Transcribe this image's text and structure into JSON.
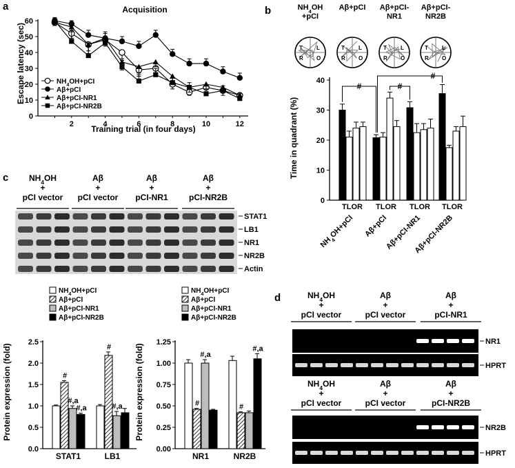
{
  "figure": {
    "panel_labels": {
      "a": "a",
      "b": "b",
      "c": "c",
      "d": "d"
    }
  },
  "chart_data": [
    {
      "panel": "a",
      "type": "line",
      "title": "Acquisition",
      "xlabel": "Training trial (in four days)",
      "ylabel": "Escape latency (sec)",
      "xlim": [
        0,
        12.5
      ],
      "ylim": [
        0,
        60
      ],
      "xticks": [
        2,
        4,
        6,
        8,
        10,
        12
      ],
      "yticks": [
        0,
        10,
        20,
        30,
        40,
        50,
        60
      ],
      "legend_position": "bottom-left",
      "series": [
        {
          "name": "NH4OH+pCI",
          "marker": "circle-open",
          "x": [
            1,
            2,
            3,
            4,
            5,
            6,
            7,
            8,
            9,
            10,
            11,
            12
          ],
          "y": [
            59,
            52,
            45,
            48,
            40,
            29,
            30,
            20,
            15,
            18,
            16,
            13
          ],
          "err": [
            2,
            3,
            4,
            4,
            5,
            4,
            3,
            3,
            2,
            3,
            3,
            3
          ]
        },
        {
          "name": "Aβ+pCI",
          "marker": "circle-filled",
          "x": [
            1,
            2,
            3,
            4,
            5,
            6,
            7,
            8,
            9,
            10,
            11,
            12
          ],
          "y": [
            60,
            58,
            51,
            49,
            47,
            44,
            51,
            39,
            33,
            33,
            28,
            24
          ],
          "err": [
            1,
            2,
            3,
            4,
            3,
            3,
            3,
            3,
            3,
            3,
            3,
            3
          ]
        },
        {
          "name": "Aβ+pCI-NR1",
          "marker": "triangle-filled",
          "x": [
            1,
            2,
            3,
            4,
            5,
            6,
            7,
            8,
            9,
            10,
            11,
            12
          ],
          "y": [
            59,
            56,
            45,
            49,
            34,
            31,
            34,
            25,
            18,
            20,
            18,
            13
          ],
          "err": [
            2,
            3,
            6,
            4,
            5,
            4,
            3,
            3,
            3,
            3,
            3,
            3
          ]
        },
        {
          "name": "Aβ+pCI-NR2B",
          "marker": "square-filled",
          "x": [
            1,
            2,
            3,
            4,
            5,
            6,
            7,
            8,
            9,
            10,
            11,
            12
          ],
          "y": [
            60,
            47,
            38,
            46,
            31,
            22,
            26,
            21,
            18,
            14,
            16,
            11
          ],
          "err": [
            2,
            7,
            8,
            6,
            5,
            4,
            4,
            3,
            3,
            3,
            3,
            3
          ]
        }
      ]
    },
    {
      "panel": "b",
      "type": "bar",
      "ylabel": "Time in quadrant (%)",
      "ylim": [
        0,
        40
      ],
      "yticks": [
        0,
        10,
        20,
        30,
        40
      ],
      "quadrant_labels": [
        "T",
        "L",
        "O",
        "R"
      ],
      "group_tick_text": [
        "TLOR",
        "TLOR",
        "TLOR",
        "TLOR"
      ],
      "significance_mark": "#",
      "track_labels": [
        [
          "NH4OH",
          "+pCI"
        ],
        [
          "Aβ+pCI"
        ],
        [
          "Aβ+pCI-",
          "NR1"
        ],
        [
          "Aβ+pCI-",
          "NR2B"
        ]
      ],
      "track_quadrant_letters": [
        "T",
        "L",
        "R",
        "O"
      ],
      "groups": [
        {
          "name": "NH4OH+pCI",
          "values": [
            30,
            21,
            24,
            24.5
          ],
          "err": [
            2,
            2,
            2,
            1.5
          ]
        },
        {
          "name": "Aβ+pCI",
          "values": [
            20.8,
            21,
            34,
            24.5
          ],
          "err": [
            1,
            1.5,
            2,
            2
          ]
        },
        {
          "name": "Aβ+pCI-NR1",
          "values": [
            30.8,
            22.5,
            23.5,
            24
          ],
          "err": [
            2,
            3,
            2,
            3
          ]
        },
        {
          "name": "Aβ+pCI-NR2B",
          "values": [
            35.5,
            17.5,
            23,
            24.5
          ],
          "err": [
            3,
            0.8,
            1.5,
            3.5
          ]
        }
      ]
    },
    {
      "panel": "c-left",
      "type": "bar",
      "ylabel": "Protein expression (fold)",
      "ylim": [
        0,
        2.5
      ],
      "yticks": [
        0,
        0.5,
        1.0,
        1.5,
        2.0,
        2.5
      ],
      "categories": [
        "STAT1",
        "LB1"
      ],
      "legend_position": "top",
      "series": [
        {
          "name": "NH4OH+pCI",
          "values": [
            1.0,
            1.0
          ],
          "err": [
            0.02,
            0.03
          ],
          "labels": [
            "",
            ""
          ]
        },
        {
          "name": "Aβ+pCI",
          "values": [
            1.55,
            2.18
          ],
          "err": [
            0.04,
            0.08
          ],
          "labels": [
            "#",
            "#"
          ]
        },
        {
          "name": "Aβ+pCI-NR1",
          "values": [
            0.94,
            0.77
          ],
          "err": [
            0.06,
            0.1
          ],
          "labels": [
            "#,a",
            "#,a"
          ]
        },
        {
          "name": "Aβ+pCI-NR2B",
          "values": [
            0.8,
            0.84
          ],
          "err": [
            0.03,
            0.1
          ],
          "labels": [
            "#,a",
            ""
          ]
        }
      ]
    },
    {
      "panel": "c-right",
      "type": "bar",
      "ylabel": "Protein expression (fold)",
      "ylim": [
        0,
        1.25
      ],
      "yticks": [
        0,
        0.25,
        0.5,
        0.75,
        1.0,
        1.25
      ],
      "categories": [
        "NR1",
        "NR2B"
      ],
      "legend_position": "top",
      "series": [
        {
          "name": "NH4OH+pCI",
          "values": [
            1.0,
            1.03
          ],
          "err": [
            0.04,
            0.05
          ],
          "labels": [
            "",
            ""
          ]
        },
        {
          "name": "Aβ+pCI",
          "values": [
            0.46,
            0.42
          ],
          "err": [
            0.01,
            0.01
          ],
          "labels": [
            "#",
            "#"
          ]
        },
        {
          "name": "Aβ+pCI-NR1",
          "values": [
            1.0,
            0.42
          ],
          "err": [
            0.04,
            0.02
          ],
          "labels": [
            "#,a",
            ""
          ]
        },
        {
          "name": "Aβ+pCI-NR2B",
          "values": [
            0.45,
            1.05
          ],
          "err": [
            0.01,
            0.06
          ],
          "labels": [
            "",
            "#,a"
          ]
        }
      ]
    }
  ],
  "western_blot": {
    "group_headers": [
      [
        "NH4OH",
        "+",
        "pCI vector"
      ],
      [
        "Aβ",
        "+",
        "pCI vector"
      ],
      [
        "Aβ",
        "+",
        "pCI-NR1"
      ],
      [
        "Aβ",
        "+",
        "pCI-NR2B"
      ]
    ],
    "bands": [
      "STAT1",
      "LB1",
      "NR1",
      "NR2B",
      "Actin"
    ]
  },
  "rt_pcr": {
    "top_headers": [
      [
        "NH4OH",
        "+",
        "pCI vector"
      ],
      [
        "Aβ",
        "+",
        "pCI vector"
      ],
      [
        "Aβ",
        "+",
        "pCI-NR1"
      ]
    ],
    "bottom_headers": [
      [
        "NH4OH",
        "+",
        "pCI vector"
      ],
      [
        "Aβ",
        "+",
        "pCI vector"
      ],
      [
        "Aβ",
        "+",
        "pCI-NR2B"
      ]
    ],
    "top_bands": [
      "NR1",
      "HPRT"
    ],
    "bottom_bands": [
      "NR2B",
      "HPRT"
    ]
  },
  "colors": {
    "text": "#000000",
    "bar_gray": "#bdbdbd",
    "blot_bg": "#d8d8d8",
    "gel_bg": "#000000",
    "gel_band": "#ffffff"
  }
}
